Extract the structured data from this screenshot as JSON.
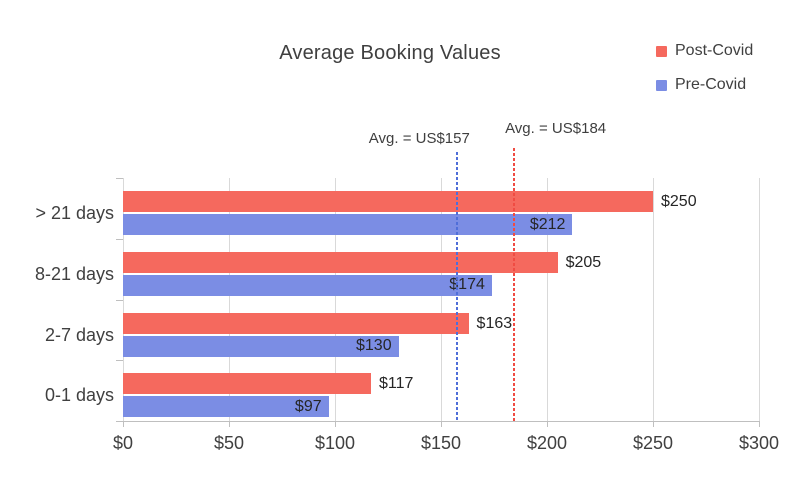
{
  "chart_data": {
    "type": "bar",
    "orientation": "horizontal",
    "title": "Average Booking Values",
    "categories": [
      "> 21 days",
      "8-21 days",
      "2-7 days",
      "0-1 days"
    ],
    "series": [
      {
        "name": "Post-Covid",
        "color": "#F5695E",
        "values": [
          250,
          205,
          163,
          117
        ],
        "labels": [
          "$250",
          "$205",
          "$163",
          "$117"
        ],
        "label_position": "outside"
      },
      {
        "name": "Pre-Covid",
        "color": "#7B8DE4",
        "values": [
          212,
          174,
          130,
          97
        ],
        "labels": [
          "$212",
          "$174",
          "$130",
          "$97"
        ],
        "label_position": "inside"
      }
    ],
    "x_axis": {
      "min": 0,
      "max": 300,
      "tick_step": 50,
      "tick_labels": [
        "$0",
        "$50",
        "$100",
        "$150",
        "$200",
        "$250",
        "$300"
      ]
    },
    "reference_lines": [
      {
        "label": "Avg. = US$157",
        "value": 157,
        "color": "#4F6ED9",
        "label_side": "left"
      },
      {
        "label": "Avg. = US$184",
        "value": 184,
        "color": "#F04B42",
        "label_side": "right"
      }
    ],
    "grid": true,
    "legend_position": "top-right",
    "colors": {
      "gridline": "#D9D9D9",
      "axis": "#BFBFBF",
      "text": "#404040"
    }
  }
}
